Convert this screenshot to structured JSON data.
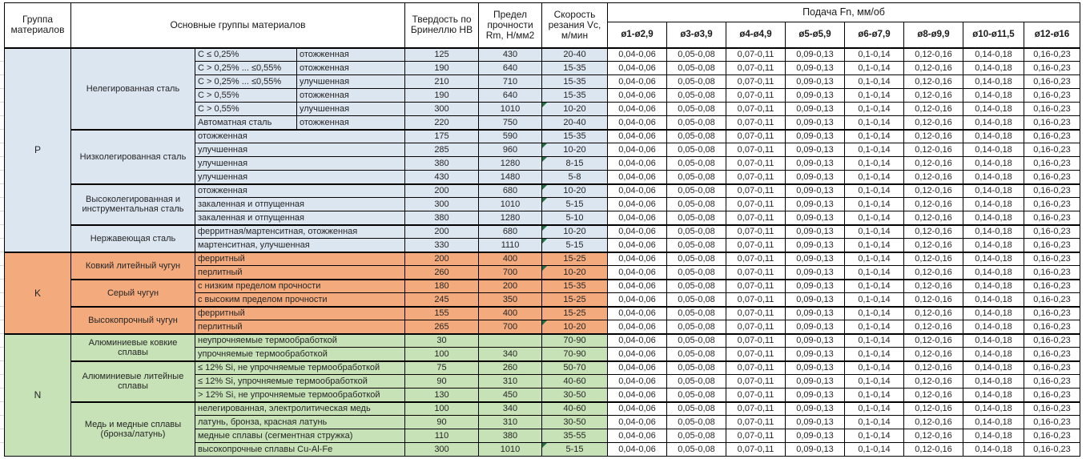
{
  "header": {
    "group": "Группа материалов",
    "main_groups": "Основные группы материалов",
    "hardness": "Твердость по Бринеллю HB",
    "strength": "Предел прочности Rm, Н/мм2",
    "speed": "Скорость резания Vc, м/мин",
    "feed": "Подача Fn, мм/об",
    "feed_columns": [
      "ø1-ø2,9",
      "ø3-ø3,9",
      "ø4-ø4,9",
      "ø5-ø5,9",
      "ø6-ø7,9",
      "ø8-ø9,9",
      "ø10-ø11,5",
      "ø12-ø16"
    ]
  },
  "feed_values": [
    "0,04-0,06",
    "0,05-0,08",
    "0,07-0,11",
    "0,09-0,13",
    "0,1-0,14",
    "0,12-0,16",
    "0,14-0,18",
    "0,16-0,23"
  ],
  "note_indicator_color": "#1E7145",
  "groups": [
    {
      "code": "P",
      "color": "#DCE6F1",
      "subgroups": [
        {
          "name": "Нелегированная сталь",
          "rows": [
            {
              "qualifier": "C ≤ 0,25%",
              "state": "отожженная",
              "hb": "125",
              "rm": "430",
              "vc": "20-40",
              "note": false
            },
            {
              "qualifier": "C > 0,25% ... ≤0,55%",
              "state": "отожженная",
              "hb": "190",
              "rm": "640",
              "vc": "15-35",
              "note": false
            },
            {
              "qualifier": "C > 0,25% ... ≤0,55%",
              "state": "улучшенная",
              "hb": "210",
              "rm": "710",
              "vc": "15-35",
              "note": false
            },
            {
              "qualifier": "C > 0,55%",
              "state": "отожженная",
              "hb": "190",
              "rm": "640",
              "vc": "15-35",
              "note": false
            },
            {
              "qualifier": "C > 0,55%",
              "state": "улучшенная",
              "hb": "300",
              "rm": "1010",
              "vc": "10-20",
              "note": true
            },
            {
              "qualifier": "Автоматная сталь",
              "state": "отожженная",
              "hb": "220",
              "rm": "750",
              "vc": "20-40",
              "note": false
            }
          ]
        },
        {
          "name": "Низколегированная сталь",
          "rows": [
            {
              "description": "отожженная",
              "hb": "175",
              "rm": "590",
              "vc": "15-35",
              "note": false
            },
            {
              "description": "улучшенная",
              "hb": "285",
              "rm": "960",
              "vc": "10-20",
              "note": true
            },
            {
              "description": "улучшенная",
              "hb": "380",
              "rm": "1280",
              "vc": "8-15",
              "note": true
            },
            {
              "description": "улучшенная",
              "hb": "430",
              "rm": "1480",
              "vc": "5-8",
              "note": false
            }
          ]
        },
        {
          "name": "Высоколегированная и инструментальная сталь",
          "rows": [
            {
              "description": "отожженная",
              "hb": "200",
              "rm": "680",
              "vc": "10-20",
              "note": true
            },
            {
              "description": "закаленная и отпущенная",
              "hb": "300",
              "rm": "1010",
              "vc": "5-15",
              "note": true
            },
            {
              "description": "закаленная и отпущенная",
              "hb": "380",
              "rm": "1280",
              "vc": "5-10",
              "note": false
            }
          ]
        },
        {
          "name": "Нержавеющая сталь",
          "rows": [
            {
              "description": "ферритная/мартенситная, отожженная",
              "hb": "200",
              "rm": "680",
              "vc": "10-20",
              "note": true
            },
            {
              "description": "мартенситная, улучшенная",
              "hb": "330",
              "rm": "1110",
              "vc": "5-15",
              "note": true
            }
          ]
        }
      ]
    },
    {
      "code": "K",
      "color": "#F3AA7D",
      "subgroups": [
        {
          "name": "Ковкий литейный чугун",
          "rows": [
            {
              "description": "ферритный",
              "hb": "200",
              "rm": "400",
              "vc": "15-25",
              "note": false
            },
            {
              "description": "перлитный",
              "hb": "260",
              "rm": "700",
              "vc": "10-20",
              "note": true
            }
          ]
        },
        {
          "name": "Серый чугун",
          "rows": [
            {
              "description": "с низким пределом прочности",
              "hb": "180",
              "rm": "200",
              "vc": "15-35",
              "note": false
            },
            {
              "description": "с высоким пределом прочности",
              "hb": "245",
              "rm": "350",
              "vc": "15-25",
              "note": false
            }
          ]
        },
        {
          "name": "Высокопрочный чугун",
          "rows": [
            {
              "description": "ферритный",
              "hb": "155",
              "rm": "400",
              "vc": "15-25",
              "note": false
            },
            {
              "description": "перлитный",
              "hb": "265",
              "rm": "700",
              "vc": "10-20",
              "note": true
            }
          ]
        }
      ]
    },
    {
      "code": "N",
      "color": "#C7E2B6",
      "subgroups": [
        {
          "name": "Алюминиевые ковкие сплавы",
          "rows": [
            {
              "description": "неупрочняемые термообработкой",
              "hb": "30",
              "rm": "",
              "vc": "70-90",
              "note": false
            },
            {
              "description": "упрочняемые термообработкой",
              "hb": "100",
              "rm": "340",
              "vc": "70-90",
              "note": false
            }
          ]
        },
        {
          "name": "Алюминиевые литейные сплавы",
          "rows": [
            {
              "description": "≤ 12% Si, не упрочняемые термообработкой",
              "hb": "75",
              "rm": "260",
              "vc": "50-70",
              "note": false
            },
            {
              "description": "≤ 12% Si, упрочняемые термообработкой",
              "hb": "90",
              "rm": "310",
              "vc": "40-60",
              "note": false
            },
            {
              "description": "> 12% Si, не упрочняемые термообработкой",
              "hb": "130",
              "rm": "450",
              "vc": "30-50",
              "note": false
            }
          ]
        },
        {
          "name": "Медь и медные сплавы (бронза/латунь)",
          "rows": [
            {
              "description": "нелегированная, электролитическая медь",
              "hb": "100",
              "rm": "340",
              "vc": "40-60",
              "note": false
            },
            {
              "description": "латунь, бронза, красная латунь",
              "hb": "90",
              "rm": "310",
              "vc": "30-50",
              "note": false
            },
            {
              "description": "медные сплавы (сегментная стружка)",
              "hb": "110",
              "rm": "380",
              "vc": "35-55",
              "note": false
            },
            {
              "description": "высокопрочные сплавы Cu-Al-Fe",
              "hb": "300",
              "rm": "1010",
              "vc": "5-15",
              "note": true
            }
          ]
        }
      ]
    }
  ]
}
